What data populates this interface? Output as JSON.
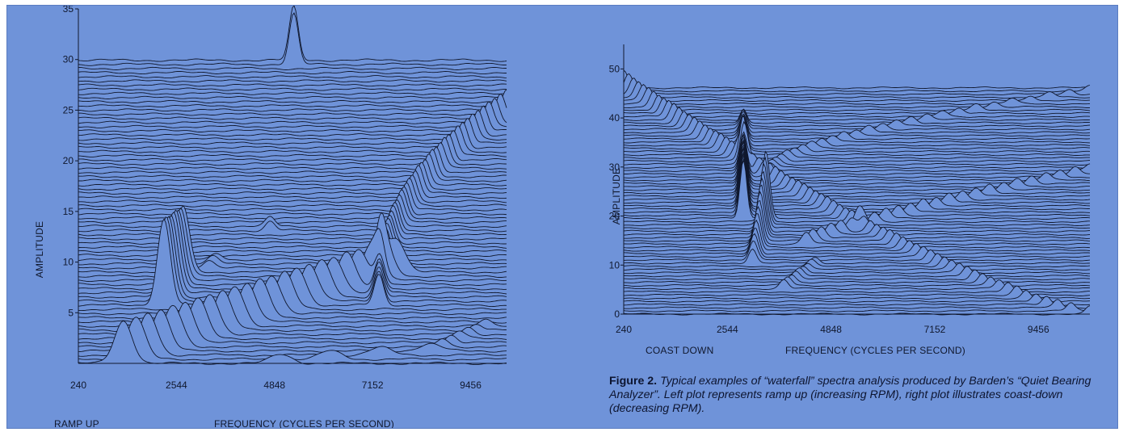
{
  "figure": {
    "caption_label": "Figure 2.",
    "caption_text": "Typical examples of “waterfall” spectra analysis produced by Barden’s “Quiet Bearing Analyzer”. Left plot represents ramp up (increasing RPM), right plot illustrates coast-down (decreasing RPM)."
  },
  "colors": {
    "background": "#6f93d9",
    "ink": "#10182e",
    "fill": "#6f93d9"
  },
  "chart_data": [
    {
      "type": "line",
      "subtype": "waterfall",
      "title": "",
      "mode_label": "RAMP UP",
      "xlabel": "FREQUENCY (CYCLES PER SECOND)",
      "ylabel": "AMPLITUDE",
      "xlim": [
        240,
        10300
      ],
      "ylim": [
        0,
        35
      ],
      "x_ticks": [
        240,
        2544,
        4848,
        7152,
        9456
      ],
      "y_ticks": [
        5,
        10,
        15,
        20,
        25,
        30,
        35
      ],
      "trace_count": 74,
      "trace_spacing": 0.41,
      "depth_shift_x": 0,
      "baseline_wave": 0.08,
      "peaks": [
        {
          "x_start": 1300,
          "x_end": 7700,
          "first_trace": 0,
          "last_trace": 22,
          "height_start": 4.2,
          "height_end": 3.4,
          "width": 420
        },
        {
          "x_start": 2250,
          "x_end": 2700,
          "first_trace": 14,
          "last_trace": 22,
          "height_start": 8.5,
          "height_end": 6.5,
          "width": 300
        },
        {
          "x_start": 7300,
          "x_end": 10300,
          "first_trace": 14,
          "last_trace": 60,
          "height_start": 3.0,
          "height_end": 2.4,
          "width": 220,
          "curve": 2.2
        },
        {
          "x_start": 5300,
          "x_end": 5300,
          "first_trace": 72,
          "last_trace": 73,
          "height_start": 5.0,
          "height_end": 5.3,
          "width": 210
        },
        {
          "x_start": 4750,
          "x_end": 4750,
          "first_trace": 32,
          "last_trace": 33,
          "height_start": 0.9,
          "height_end": 0.9,
          "width": 220
        },
        {
          "x_start": 5000,
          "x_end": 8500,
          "first_trace": 0,
          "last_trace": 3,
          "height_start": 0.9,
          "height_end": 0.7,
          "width": 500
        },
        {
          "x_start": 8800,
          "x_end": 9800,
          "first_trace": 4,
          "last_trace": 9,
          "height_start": 0.8,
          "height_end": 0.6,
          "width": 260
        },
        {
          "x_start": 3300,
          "x_end": 3500,
          "first_trace": 23,
          "last_trace": 25,
          "height_start": 0.8,
          "height_end": 0.6,
          "width": 260
        }
      ]
    },
    {
      "type": "line",
      "subtype": "waterfall",
      "title": "",
      "mode_label": "COAST DOWN",
      "xlabel": "FREQUENCY (CYCLES PER SECOND)",
      "ylabel": "AMPLITUDE",
      "xlim": [
        240,
        10600
      ],
      "ylim": [
        0,
        55
      ],
      "x_ticks": [
        240,
        2544,
        4848,
        7152,
        9456
      ],
      "y_ticks": [
        0,
        10,
        20,
        30,
        40,
        50
      ],
      "trace_count": 72,
      "trace_spacing": 0.65,
      "depth_shift_x": 0,
      "baseline_wave": 0.12,
      "peaks": [
        {
          "x_start": 10600,
          "x_end": 240,
          "first_trace": 0,
          "last_trace": 71,
          "height_start": 1.6,
          "height_end": 3.4,
          "width": 180,
          "curve": 0.75
        },
        {
          "x_start": 2900,
          "x_end": 2900,
          "first_trace": 30,
          "last_trace": 60,
          "height_start": 12.0,
          "height_end": 3.0,
          "width": 150
        },
        {
          "x_start": 3100,
          "x_end": 3400,
          "first_trace": 16,
          "last_trace": 30,
          "height_start": 3.0,
          "height_end": 14.0,
          "width": 170
        },
        {
          "x_start": 4300,
          "x_end": 10600,
          "first_trace": 22,
          "last_trace": 45,
          "height_start": 2.4,
          "height_end": 1.4,
          "width": 200,
          "curve": 1.2
        },
        {
          "x_start": 3500,
          "x_end": 10600,
          "first_trace": 45,
          "last_trace": 70,
          "height_start": 1.6,
          "height_end": 1.0,
          "width": 210,
          "curve": 1.6
        },
        {
          "x_start": 3800,
          "x_end": 4500,
          "first_trace": 8,
          "last_trace": 16,
          "height_start": 1.8,
          "height_end": 1.2,
          "width": 180
        }
      ]
    }
  ]
}
